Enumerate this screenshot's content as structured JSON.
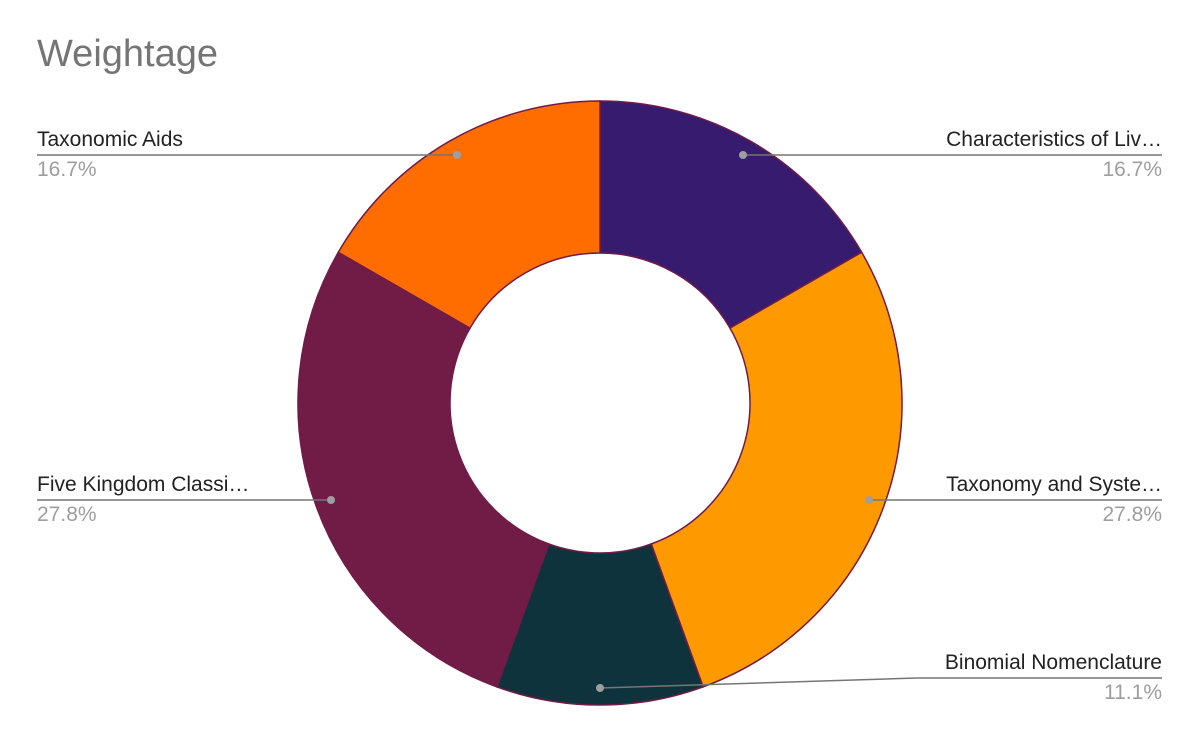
{
  "chart_data": {
    "type": "pie",
    "variant": "donut",
    "title": "Weightage",
    "slices": [
      {
        "label": "Characteristics of Liv…",
        "value": 16.7,
        "percent_label": "16.7%",
        "color": "#371B6F"
      },
      {
        "label": "Taxonomy and Syste…",
        "value": 27.8,
        "percent_label": "27.8%",
        "color": "#FF9900"
      },
      {
        "label": "Binomial Nomenclature",
        "value": 11.1,
        "percent_label": "11.1%",
        "color": "#0F333D"
      },
      {
        "label": "Five Kingdom Classi…",
        "value": 27.8,
        "percent_label": "27.8%",
        "color": "#711B47"
      },
      {
        "label": "Taxonomic Aids",
        "value": 16.7,
        "percent_label": "16.7%",
        "color": "#FF6D00"
      }
    ],
    "slice_border_color": "#711B47",
    "leader_line_color": "#757575",
    "legend": "none (labels beside slices)"
  }
}
